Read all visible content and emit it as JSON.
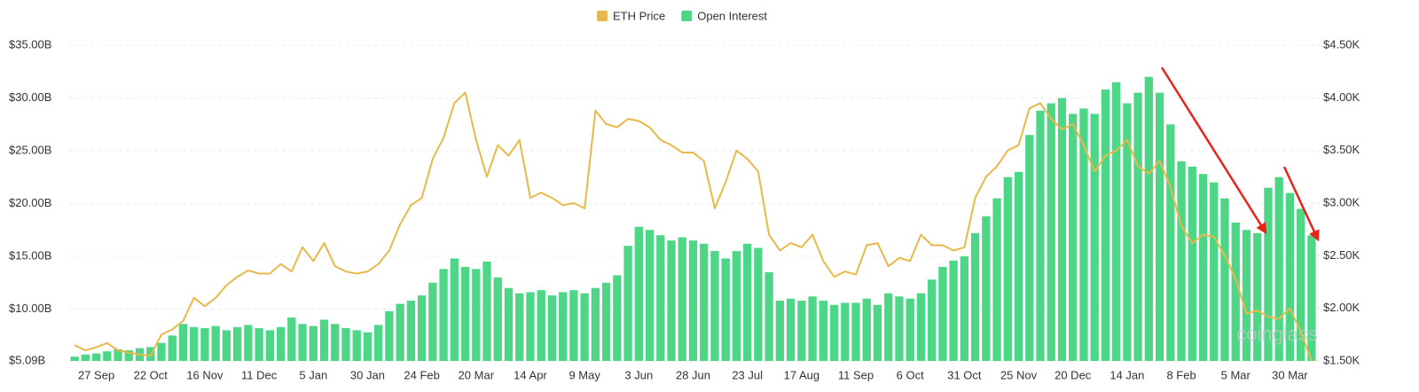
{
  "chart_data": {
    "type": "bar",
    "watermark": "coinglass",
    "categories": [
      null,
      null,
      "27 Sep",
      null,
      null,
      null,
      null,
      "22 Oct",
      null,
      null,
      null,
      null,
      "16 Nov",
      null,
      null,
      null,
      null,
      "11 Dec",
      null,
      null,
      null,
      null,
      "5 Jan",
      null,
      null,
      null,
      null,
      "30 Jan",
      null,
      null,
      null,
      null,
      "24 Feb",
      null,
      null,
      null,
      null,
      "20 Mar",
      null,
      null,
      null,
      null,
      "14 Apr",
      null,
      null,
      null,
      null,
      "9 May",
      null,
      null,
      null,
      null,
      "3 Jun",
      null,
      null,
      null,
      null,
      "28 Jun",
      null,
      null,
      null,
      null,
      "23 Jul",
      null,
      null,
      null,
      null,
      "17 Aug",
      null,
      null,
      null,
      null,
      "11 Sep",
      null,
      null,
      null,
      null,
      "6 Oct",
      null,
      null,
      null,
      null,
      "31 Oct",
      null,
      null,
      null,
      null,
      "25 Nov",
      null,
      null,
      null,
      null,
      "20 Dec",
      null,
      null,
      null,
      null,
      "14 Jan",
      null,
      null,
      null,
      null,
      "8 Feb",
      null,
      null,
      null,
      null,
      "5 Mar",
      null,
      null,
      null,
      null,
      "30 Mar",
      null,
      null
    ],
    "series": [
      {
        "name": "ETH Price",
        "type": "line",
        "axis": "y2",
        "color": "#e8b94a",
        "values": [
          1.65,
          1.6,
          1.63,
          1.67,
          1.6,
          1.58,
          1.56,
          1.55,
          1.75,
          1.8,
          1.88,
          2.1,
          2.02,
          2.1,
          2.22,
          2.3,
          2.36,
          2.33,
          2.33,
          2.42,
          2.35,
          2.58,
          2.45,
          2.62,
          2.4,
          2.35,
          2.33,
          2.35,
          2.42,
          2.55,
          2.8,
          2.98,
          3.05,
          3.42,
          3.62,
          3.95,
          4.05,
          3.6,
          3.25,
          3.55,
          3.45,
          3.6,
          3.05,
          3.1,
          3.05,
          2.98,
          3.0,
          2.95,
          3.88,
          3.75,
          3.72,
          3.8,
          3.78,
          3.72,
          3.6,
          3.55,
          3.48,
          3.48,
          3.4,
          2.95,
          3.2,
          3.5,
          3.42,
          3.3,
          2.7,
          2.55,
          2.62,
          2.58,
          2.7,
          2.45,
          2.3,
          2.35,
          2.32,
          2.6,
          2.62,
          2.4,
          2.48,
          2.45,
          2.7,
          2.6,
          2.6,
          2.55,
          2.58,
          3.05,
          3.25,
          3.35,
          3.5,
          3.55,
          3.9,
          3.95,
          3.8,
          3.7,
          3.75,
          3.55,
          3.3,
          3.45,
          3.5,
          3.6,
          3.35,
          3.28,
          3.4,
          3.15,
          2.78,
          2.62,
          2.7,
          2.68,
          2.5,
          2.28,
          1.95,
          1.98,
          1.92,
          1.9,
          2.0,
          1.78,
          1.5
        ]
      },
      {
        "name": "Open Interest",
        "type": "bar",
        "color": "#4cd685",
        "values": [
          5.5,
          5.7,
          5.8,
          6.0,
          6.2,
          6.1,
          6.3,
          6.4,
          6.8,
          7.5,
          8.6,
          8.3,
          8.2,
          8.4,
          8.0,
          8.3,
          8.5,
          8.2,
          8.0,
          8.3,
          9.2,
          8.6,
          8.4,
          9.0,
          8.6,
          8.2,
          8.0,
          7.8,
          8.5,
          9.8,
          10.5,
          10.8,
          11.3,
          12.5,
          13.8,
          14.8,
          14.0,
          13.8,
          14.5,
          13.0,
          12.0,
          11.5,
          11.6,
          11.8,
          11.3,
          11.6,
          11.8,
          11.5,
          12.0,
          12.5,
          13.2,
          16.0,
          17.8,
          17.5,
          17.0,
          16.5,
          16.8,
          16.5,
          16.2,
          15.5,
          14.8,
          15.5,
          16.2,
          15.8,
          13.5,
          10.8,
          11.0,
          10.8,
          11.2,
          10.8,
          10.4,
          10.6,
          10.6,
          11.0,
          10.4,
          11.5,
          11.2,
          11.0,
          11.5,
          12.8,
          14.0,
          14.6,
          15.0,
          17.2,
          18.8,
          20.5,
          22.5,
          23.0,
          26.5,
          28.8,
          29.5,
          30.0,
          28.5,
          29.0,
          28.5,
          30.8,
          31.5,
          29.5,
          30.5,
          32.0,
          30.5,
          27.5,
          24.0,
          23.5,
          22.8,
          22.0,
          20.5,
          18.2,
          17.5,
          17.2,
          21.5,
          22.5,
          21.0,
          19.5,
          17.0
        ]
      }
    ],
    "ylim": [
      5.09,
      35
    ],
    "yticks": [
      {
        "value": 5.09,
        "label": "$5.09B"
      },
      {
        "value": 10,
        "label": "$10.00B"
      },
      {
        "value": 15,
        "label": "$15.00B"
      },
      {
        "value": 20,
        "label": "$20.00B"
      },
      {
        "value": 25,
        "label": "$25.00B"
      },
      {
        "value": 30,
        "label": "$30.00B"
      },
      {
        "value": 35,
        "label": "$35.00B"
      }
    ],
    "y2lim": [
      1.5,
      4.5
    ],
    "y2ticks": [
      {
        "value": 1.5,
        "label": "$1.50K"
      },
      {
        "value": 2,
        "label": "$2.00K"
      },
      {
        "value": 2.5,
        "label": "$2.50K"
      },
      {
        "value": 3,
        "label": "$3.00K"
      },
      {
        "value": 3.5,
        "label": "$3.50K"
      },
      {
        "value": 4,
        "label": "$4.00K"
      },
      {
        "value": 4.5,
        "label": "$4.50K"
      }
    ],
    "grid": true,
    "legend": "top"
  }
}
